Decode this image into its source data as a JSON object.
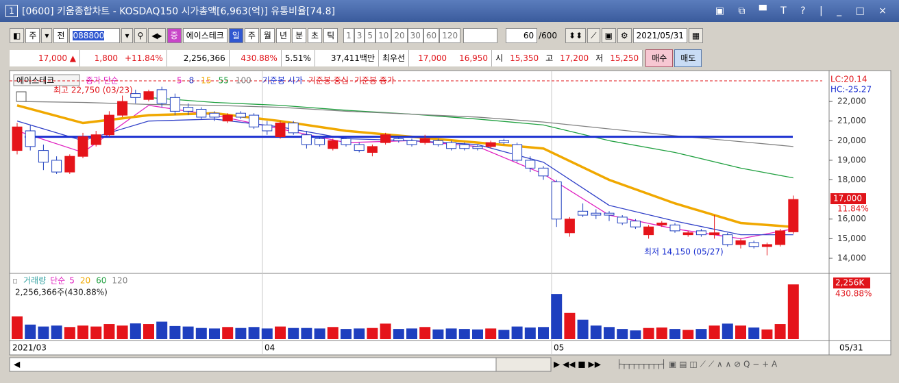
{
  "window": {
    "title_number": "1",
    "title": "[0600] 키움종합차트 - KOSDAQ150 시가총액[6,963(억)] 유통비율[74.8]"
  },
  "toolbar": {
    "market": "주",
    "range": "전",
    "code": "088800",
    "name": "에이스테크",
    "periods": [
      "일",
      "주",
      "월",
      "년",
      "분",
      "초",
      "틱"
    ],
    "intervals": [
      "1",
      "3",
      "5",
      "10",
      "20",
      "30",
      "60",
      "120"
    ],
    "count": "60",
    "max_count": "/600",
    "date": "2021/05/31"
  },
  "quote": {
    "price": "17,000 ▲",
    "change": "1,800",
    "change_pct": "+11.84%",
    "volume": "2,256,366",
    "volume_ratio": "430.88%",
    "turnover": "5.51%",
    "amount": "37,411백만",
    "best_label": "최우선",
    "ask": "17,000",
    "bid": "16,950",
    "open_label": "시",
    "open": "15,350",
    "high_label": "고",
    "high": "17,200",
    "low_label": "저",
    "low": "15,250",
    "buy": "매수",
    "sell": "매도"
  },
  "chart_data": {
    "type": "candlestick",
    "name_label": "에이스테크",
    "legend_prefix": "종가 단순",
    "base_legend": [
      {
        "name": "기준봉 시가",
        "color": "#1a2fd0"
      },
      {
        "name": "기준봉 중심",
        "color": "#e0141a"
      },
      {
        "name": "기준봉 종가",
        "color": "#e0141a"
      }
    ],
    "high_note": "최고 22,750 (03/23)",
    "low_note": "최저 14,150 (05/27)",
    "lc": "LC:20.14",
    "hc": "HC:-25.27",
    "last_price_label": "17,000",
    "last_pct_label": "11.84%",
    "up_color": "#e5141a",
    "down_color": "#1e3fbf",
    "ylim": [
      13300,
      23400
    ],
    "yticks": [
      {
        "value": 22000,
        "label": "22,000"
      },
      {
        "value": 21000,
        "label": "21,000"
      },
      {
        "value": 20000,
        "label": "20,000"
      },
      {
        "value": 19000,
        "label": "19,000"
      },
      {
        "value": 18000,
        "label": "18,000"
      },
      {
        "value": 16000,
        "label": "16,000"
      },
      {
        "value": 15000,
        "label": "15,000"
      },
      {
        "value": 14000,
        "label": "14,000"
      }
    ],
    "reference_line": 20200,
    "upper_line": 23050,
    "candles": [
      [
        19500,
        20900,
        19300,
        20700
      ],
      [
        20500,
        20800,
        19500,
        19700
      ],
      [
        19500,
        19800,
        18500,
        18900
      ],
      [
        19000,
        19200,
        18300,
        18400
      ],
      [
        18400,
        19300,
        18300,
        19200
      ],
      [
        19200,
        20400,
        19100,
        20200
      ],
      [
        19800,
        20500,
        19700,
        20300
      ],
      [
        20300,
        21500,
        20200,
        21300
      ],
      [
        21300,
        22300,
        21200,
        22000
      ],
      [
        22400,
        22600,
        21900,
        22200
      ],
      [
        22100,
        22600,
        22000,
        22500
      ],
      [
        22600,
        22750,
        21700,
        21900
      ],
      [
        22200,
        22400,
        21300,
        21500
      ],
      [
        21700,
        21900,
        21300,
        21500
      ],
      [
        21600,
        21700,
        21100,
        21200
      ],
      [
        21400,
        21500,
        21000,
        21200
      ],
      [
        21000,
        21400,
        20900,
        21300
      ],
      [
        21400,
        21500,
        21100,
        21200
      ],
      [
        21300,
        21400,
        20600,
        20700
      ],
      [
        20800,
        21000,
        20300,
        20500
      ],
      [
        20200,
        21000,
        20100,
        20900
      ],
      [
        20900,
        21000,
        20300,
        20400
      ],
      [
        20300,
        20500,
        19600,
        19800
      ],
      [
        20100,
        20200,
        19700,
        19800
      ],
      [
        19600,
        20100,
        19500,
        20000
      ],
      [
        20100,
        20200,
        19700,
        19800
      ],
      [
        19800,
        19900,
        19400,
        19500
      ],
      [
        19400,
        19800,
        19200,
        19700
      ],
      [
        19900,
        20400,
        19800,
        20300
      ],
      [
        20100,
        20200,
        19900,
        20000
      ],
      [
        20000,
        20100,
        19700,
        19800
      ],
      [
        19900,
        20300,
        19800,
        20100
      ],
      [
        20000,
        20100,
        19700,
        19800
      ],
      [
        19900,
        20000,
        19500,
        19600
      ],
      [
        19800,
        19900,
        19500,
        19600
      ],
      [
        19700,
        19800,
        19500,
        19600
      ],
      [
        19700,
        20000,
        19600,
        19900
      ],
      [
        20000,
        20100,
        19800,
        19900
      ],
      [
        19800,
        19900,
        18900,
        19000
      ],
      [
        19000,
        19200,
        18400,
        18600
      ],
      [
        18600,
        18700,
        18000,
        18200
      ],
      [
        17900,
        18000,
        15600,
        16000
      ],
      [
        15300,
        16100,
        15100,
        16000
      ],
      [
        16400,
        16800,
        16100,
        16200
      ],
      [
        16300,
        16500,
        16000,
        16200
      ],
      [
        16300,
        16400,
        15900,
        16200
      ],
      [
        16100,
        16200,
        15700,
        15800
      ],
      [
        15900,
        16000,
        15500,
        15600
      ],
      [
        15200,
        15700,
        15000,
        15600
      ],
      [
        15700,
        15900,
        15600,
        15800
      ],
      [
        15700,
        15800,
        15300,
        15400
      ],
      [
        15200,
        15400,
        15100,
        15300
      ],
      [
        15400,
        15500,
        15100,
        15200
      ],
      [
        15200,
        16200,
        15000,
        15300
      ],
      [
        15200,
        15300,
        14600,
        14700
      ],
      [
        14700,
        15000,
        14500,
        14900
      ],
      [
        14800,
        14900,
        14500,
        14600
      ],
      [
        14600,
        14800,
        14150,
        14700
      ],
      [
        14700,
        15500,
        14600,
        15400
      ],
      [
        15350,
        17200,
        15250,
        17000
      ]
    ],
    "series": [
      {
        "name": "5",
        "color": "#e020c0",
        "x": [
          0,
          5,
          10,
          15,
          20,
          25,
          30,
          35,
          40,
          45,
          50,
          55,
          59
        ],
        "values": [
          20500,
          19400,
          21800,
          21300,
          20600,
          19900,
          20000,
          19700,
          18300,
          16200,
          15500,
          15000,
          15500
        ]
      },
      {
        "name": "8",
        "color": "#3040c8",
        "x": [
          0,
          5,
          10,
          15,
          20,
          25,
          30,
          35,
          40,
          45,
          50,
          55,
          59
        ],
        "values": [
          21000,
          20000,
          21000,
          21100,
          20700,
          20100,
          20000,
          19800,
          18900,
          16700,
          15900,
          15200,
          15200
        ]
      },
      {
        "name": "15",
        "color": "#f0a800",
        "x": [
          0,
          5,
          10,
          15,
          20,
          25,
          30,
          35,
          40,
          45,
          50,
          55,
          59
        ],
        "values": [
          21800,
          20900,
          21300,
          21400,
          21000,
          20500,
          20200,
          19900,
          19600,
          18000,
          16800,
          15800,
          15600
        ]
      },
      {
        "name": "55",
        "color": "#20a040",
        "x": [
          10,
          15,
          20,
          25,
          30,
          35,
          40,
          45,
          50,
          55,
          59
        ],
        "values": [
          22200,
          21950,
          21800,
          21550,
          21350,
          21100,
          20800,
          20000,
          19400,
          18600,
          18100
        ]
      },
      {
        "name": "100",
        "color": "#808080",
        "x": [
          0,
          5,
          10,
          15,
          20,
          25,
          30,
          35,
          40,
          45,
          50,
          55,
          59
        ],
        "values": [
          22000,
          21950,
          21850,
          21800,
          21700,
          21500,
          21350,
          21200,
          20950,
          20600,
          20250,
          19950,
          19700
        ]
      }
    ],
    "volume": {
      "legend_label": "거래량",
      "legend_prefix": "단순",
      "ma_labels": [
        {
          "name": "5",
          "color": "#e020c0"
        },
        {
          "name": "20",
          "color": "#f0a800"
        },
        {
          "name": "60",
          "color": "#20a040"
        },
        {
          "name": "120",
          "color": "#808080"
        }
      ],
      "summary": "2,256,366주(430.88%)",
      "last_label": "2,256K",
      "last_pct": "430.88%",
      "ylim": [
        0,
        2400000
      ],
      "values": [
        940000,
        600000,
        520000,
        560000,
        500000,
        560000,
        520000,
        620000,
        560000,
        650000,
        620000,
        720000,
        540000,
        520000,
        460000,
        440000,
        500000,
        460000,
        500000,
        440000,
        520000,
        460000,
        460000,
        440000,
        500000,
        420000,
        440000,
        460000,
        640000,
        420000,
        440000,
        500000,
        400000,
        440000,
        420000,
        400000,
        440000,
        380000,
        520000,
        480000,
        500000,
        1860000,
        1080000,
        800000,
        560000,
        500000,
        420000,
        360000,
        460000,
        480000,
        420000,
        380000,
        420000,
        560000,
        640000,
        560000,
        480000,
        400000,
        620000,
        2256366
      ]
    },
    "x_labels": [
      "2021/03",
      "04",
      "05"
    ],
    "x_end_label": "05/31"
  }
}
